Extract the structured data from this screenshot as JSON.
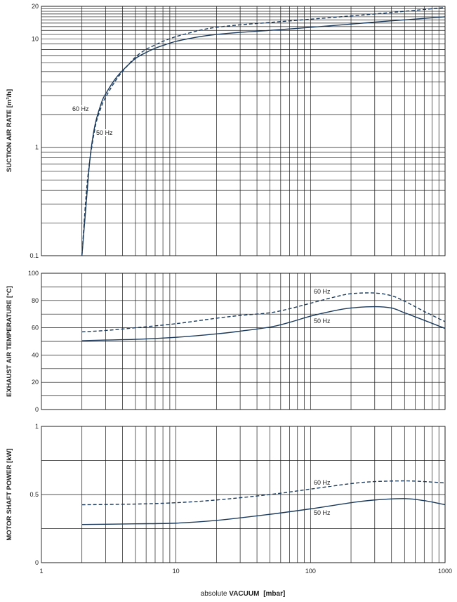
{
  "colors": {
    "line": "#1b3a5c",
    "grid": "#1a1a1a",
    "text": "#222222"
  },
  "x_axis": {
    "label_prefix": "absolute",
    "label_bold": "VACUUM",
    "label_unit": "[mbar]",
    "scale": "log",
    "range": [
      1,
      1000
    ],
    "ticks": [
      "1",
      "10",
      "100",
      "1000"
    ]
  },
  "chart_data": [
    {
      "type": "line",
      "ylabel": "SUCTION AIR RATE [m³/h]",
      "yscale": "log",
      "ylim": [
        0.1,
        20
      ],
      "yticks": [
        {
          "v": 0.1,
          "t": "0.1"
        },
        {
          "v": 1,
          "t": "1"
        },
        {
          "v": 10,
          "t": "10"
        },
        {
          "v": 20,
          "t": "20"
        }
      ],
      "series": [
        {
          "name": "60 Hz",
          "style": "dashed",
          "x": [
            2,
            2.2,
            2.5,
            2.8,
            3,
            3.5,
            4,
            5,
            6,
            7,
            8,
            10,
            15,
            20,
            30,
            50,
            100,
            200,
            300,
            500,
            1000
          ],
          "y": [
            0.1,
            0.5,
            1.5,
            2.4,
            2.9,
            4.0,
            5.0,
            6.8,
            8.0,
            8.8,
            9.5,
            10.5,
            12.0,
            12.8,
            13.5,
            14.2,
            15.2,
            16.3,
            17.0,
            18.0,
            19.5
          ]
        },
        {
          "name": "50 Hz",
          "style": "solid",
          "x": [
            2,
            2.15,
            2.3,
            2.5,
            2.8,
            3,
            3.5,
            4,
            5,
            6,
            7,
            8,
            10,
            15,
            20,
            30,
            50,
            100,
            200,
            300,
            500,
            1000
          ],
          "y": [
            0.1,
            0.3,
            0.8,
            1.6,
            2.6,
            3.1,
            4.2,
            5.1,
            6.6,
            7.5,
            8.2,
            8.7,
            9.5,
            10.5,
            11.0,
            11.5,
            12.0,
            12.8,
            13.7,
            14.3,
            15.0,
            16.0
          ]
        }
      ],
      "labels": [
        {
          "text": "60 Hz"
        },
        {
          "text": "50 Hz"
        }
      ]
    },
    {
      "type": "line",
      "ylabel": "EXHAUST AIR TEMPERATURE [°C]",
      "yscale": "linear",
      "ylim": [
        0,
        100
      ],
      "yticks": [
        {
          "v": 0,
          "t": "0"
        },
        {
          "v": 20,
          "t": "20"
        },
        {
          "v": 40,
          "t": "40"
        },
        {
          "v": 60,
          "t": "60"
        },
        {
          "v": 80,
          "t": "80"
        },
        {
          "v": 100,
          "t": "100"
        }
      ],
      "series": [
        {
          "name": "60 Hz",
          "style": "dashed",
          "x": [
            2,
            3,
            5,
            10,
            20,
            30,
            50,
            70,
            100,
            150,
            200,
            300,
            400,
            500,
            700,
            1000
          ],
          "y": [
            57,
            58,
            60,
            63,
            67,
            69,
            71,
            74,
            78,
            82.5,
            85,
            85.5,
            83.5,
            79.5,
            72,
            64.5
          ]
        },
        {
          "name": "50 Hz",
          "style": "solid",
          "x": [
            2,
            3,
            5,
            10,
            20,
            30,
            50,
            70,
            100,
            150,
            200,
            300,
            400,
            500,
            700,
            1000
          ],
          "y": [
            50.5,
            51,
            51.5,
            53,
            55.5,
            57.5,
            60.5,
            64,
            68.5,
            72.5,
            74.5,
            75.5,
            74.5,
            71,
            65.5,
            59.5
          ]
        }
      ],
      "labels": [
        {
          "text": "60 Hz"
        },
        {
          "text": "50 Hz"
        }
      ]
    },
    {
      "type": "line",
      "ylabel": "MOTOR SHAFT POWER [kW]",
      "yscale": "linear",
      "ylim": [
        0,
        1
      ],
      "yticks": [
        {
          "v": 0,
          "t": "0"
        },
        {
          "v": 0.5,
          "t": "0.5"
        },
        {
          "v": 1,
          "t": "1"
        }
      ],
      "series": [
        {
          "name": "60 Hz",
          "style": "dashed",
          "x": [
            2,
            5,
            10,
            20,
            50,
            100,
            200,
            300,
            500,
            700,
            1000
          ],
          "y": [
            0.425,
            0.43,
            0.44,
            0.46,
            0.5,
            0.54,
            0.58,
            0.595,
            0.6,
            0.595,
            0.585
          ]
        },
        {
          "name": "50 Hz",
          "style": "solid",
          "x": [
            2,
            5,
            10,
            20,
            50,
            100,
            200,
            300,
            500,
            700,
            1000
          ],
          "y": [
            0.28,
            0.285,
            0.29,
            0.31,
            0.355,
            0.395,
            0.44,
            0.46,
            0.47,
            0.455,
            0.425
          ]
        }
      ],
      "labels": [
        {
          "text": "60 Hz"
        },
        {
          "text": "50 Hz"
        }
      ]
    }
  ]
}
